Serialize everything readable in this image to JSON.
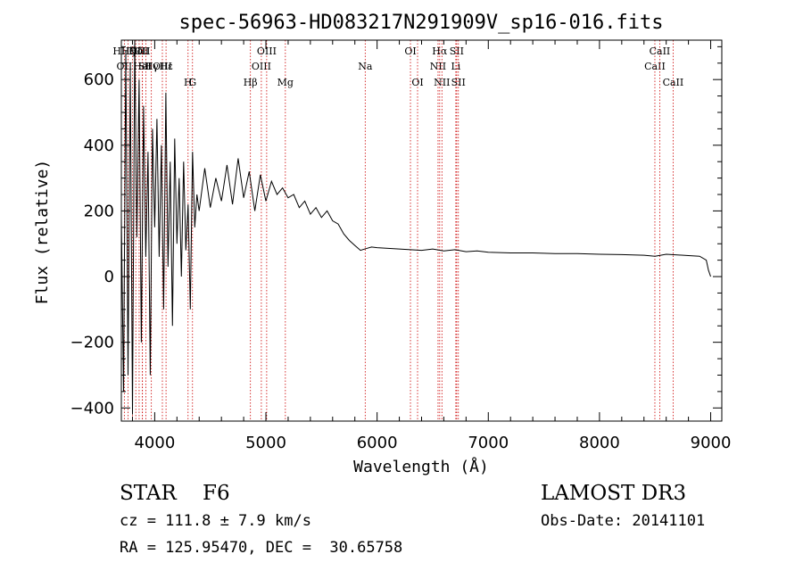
{
  "chart_data": {
    "type": "line",
    "title": "spec-56963-HD083217N291909V_sp16-016.fits",
    "xlabel": "Wavelength (Å)",
    "ylabel": "Flux (relative)",
    "xlim": [
      3700,
      9100
    ],
    "ylim": [
      -440,
      720
    ],
    "xticks": [
      4000,
      5000,
      6000,
      7000,
      8000,
      9000
    ],
    "yticks": [
      -400,
      -200,
      0,
      200,
      400,
      600
    ],
    "grid": false,
    "line_color": "#000000",
    "marker_color": "#cc0000",
    "series": [
      {
        "x": [
          3700,
          3720,
          3740,
          3760,
          3780,
          3800,
          3820,
          3840,
          3860,
          3880,
          3900,
          3920,
          3940,
          3960,
          3980,
          4000,
          4020,
          4040,
          4060,
          4080,
          4100,
          4120,
          4140,
          4160,
          4180,
          4200,
          4220,
          4240,
          4260,
          4280,
          4300,
          4320,
          4340,
          4360,
          4380,
          4400,
          4450,
          4500,
          4550,
          4600,
          4650,
          4700,
          4750,
          4800,
          4850,
          4900,
          4950,
          5000,
          5050,
          5100,
          5150,
          5200,
          5250,
          5300,
          5350,
          5400,
          5450,
          5500,
          5550,
          5600,
          5650,
          5700,
          5750,
          5800,
          5850,
          5900,
          5950,
          6000,
          6100,
          6200,
          6300,
          6400,
          6500,
          6600,
          6700,
          6800,
          6900,
          7000,
          7200,
          7400,
          7600,
          7800,
          8000,
          8200,
          8400,
          8500,
          8600,
          8700,
          8800,
          8900,
          8960,
          8980,
          9000
        ],
        "y": [
          180,
          -350,
          690,
          -300,
          640,
          -420,
          720,
          120,
          600,
          -200,
          520,
          60,
          380,
          -300,
          450,
          150,
          480,
          60,
          400,
          -100,
          560,
          30,
          350,
          -150,
          420,
          100,
          300,
          0,
          350,
          80,
          220,
          -100,
          380,
          150,
          250,
          200,
          330,
          210,
          300,
          230,
          340,
          220,
          360,
          240,
          320,
          200,
          310,
          230,
          290,
          250,
          270,
          240,
          250,
          210,
          230,
          190,
          210,
          180,
          200,
          170,
          160,
          130,
          110,
          95,
          80,
          85,
          90,
          88,
          86,
          84,
          82,
          80,
          84,
          78,
          82,
          76,
          78,
          74,
          72,
          72,
          70,
          70,
          68,
          67,
          65,
          62,
          68,
          66,
          64,
          62,
          50,
          20,
          0
        ]
      }
    ],
    "lines": [
      {
        "label": "HH",
        "x": 3700,
        "row": 0
      },
      {
        "label": "Hζ",
        "x": 3760,
        "row": 0
      },
      {
        "label": "K",
        "x": 3800,
        "row": 0
      },
      {
        "label": "Hδ",
        "x": 3830,
        "row": 0
      },
      {
        "label": "OIII",
        "x": 3860,
        "row": 0
      },
      {
        "label": "OII",
        "x": 3890,
        "row": 0
      },
      {
        "label": "OII",
        "x": 3727,
        "row": 1
      },
      {
        "label": "HeI",
        "x": 3889,
        "row": 1
      },
      {
        "label": "SII",
        "x": 3920,
        "row": 1
      },
      {
        "label": "Hγ",
        "x": 3970,
        "row": 1
      },
      {
        "label": "OIII",
        "x": 4069,
        "row": 1
      },
      {
        "label": "Hε",
        "x": 4102,
        "row": 1
      },
      {
        "label": "H",
        "x": 4300,
        "row": 2
      },
      {
        "label": "G",
        "x": 4340,
        "row": 2
      },
      {
        "label": "Hβ",
        "x": 4861,
        "row": 2
      },
      {
        "label": "OIII",
        "x": 4959,
        "row": 1
      },
      {
        "label": "OIII",
        "x": 5007,
        "row": 0
      },
      {
        "label": "Mg",
        "x": 5175,
        "row": 2
      },
      {
        "label": "Na",
        "x": 5893,
        "row": 1
      },
      {
        "label": "OI",
        "x": 6300,
        "row": 0
      },
      {
        "label": "OI",
        "x": 6364,
        "row": 2
      },
      {
        "label": "NII",
        "x": 6548,
        "row": 1
      },
      {
        "label": "Hα",
        "x": 6563,
        "row": 0
      },
      {
        "label": "NII",
        "x": 6583,
        "row": 2
      },
      {
        "label": "Li",
        "x": 6708,
        "row": 1
      },
      {
        "label": "SII",
        "x": 6716,
        "row": 0
      },
      {
        "label": "SII",
        "x": 6731,
        "row": 2
      },
      {
        "label": "CaII",
        "x": 8498,
        "row": 1
      },
      {
        "label": "CaII",
        "x": 8542,
        "row": 0
      },
      {
        "label": "CaII",
        "x": 8662,
        "row": 2
      }
    ]
  },
  "info": {
    "class": "STAR    F6",
    "survey": "LAMOST DR3",
    "cz": "cz = 111.8 ± 7.9 km/s",
    "obs_date": "Obs-Date: 20141101",
    "radec": "RA = 125.95470, DEC =  30.65758"
  }
}
